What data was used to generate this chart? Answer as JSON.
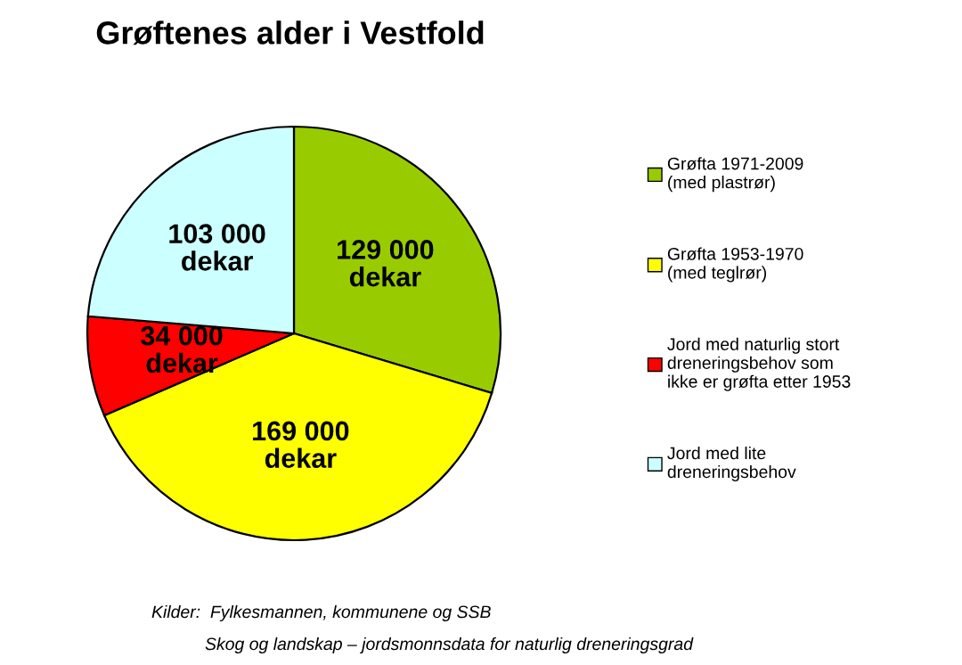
{
  "chart_data": {
    "type": "pie",
    "title": "Grøftenes alder i Vestfold",
    "categories": [
      "Grøfta 1971-2009\n(med plastrør)",
      "Grøfta 1953-1970\n(med teglrør)",
      "Jord med naturlig stort\ndreneringsbehov som\nikke er grøfta etter 1953",
      "Jord med lite\ndreneringsbehov"
    ],
    "values": [
      129000,
      169000,
      34000,
      103000
    ],
    "value_labels": [
      "129 000\ndekar",
      "169 000\ndekar",
      "34 000\ndekar",
      "103 000\ndekar"
    ],
    "colors": [
      "#99cc00",
      "#ffff00",
      "#ff0000",
      "#ccffff"
    ],
    "legend": "right",
    "annotations": [
      "Kilder:  Fylkesmannen, kommunene og SSB",
      "Skog og landskap – jordsmonnsdata for naturlig dreneringsgrad"
    ]
  }
}
